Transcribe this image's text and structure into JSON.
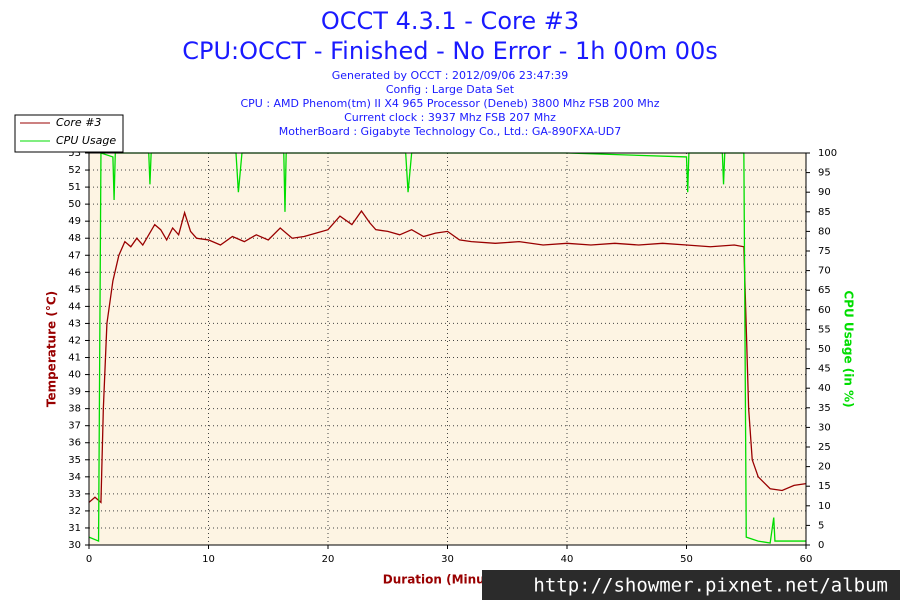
{
  "chart_data": {
    "type": "line",
    "title": "OCCT 4.3.1 - Core #3",
    "subtitle": "CPU:OCCT - Finished - No Error - 1h 00m 00s",
    "info": [
      "Generated by OCCT : 2012/09/06 23:47:39",
      "Config : Large Data Set",
      "CPU : AMD Phenom(tm) II X4 965 Processor (Deneb) 3800 Mhz FSB 200 Mhz",
      "Current clock : 3937 Mhz FSB 207 Mhz",
      "MotherBoard : Gigabyte Technology Co., Ltd.: GA-890FXA-UD7"
    ],
    "xlabel": "Duration (Minutes)",
    "ylabel": "Temperature (°C)",
    "y2label": "CPU Usage (in %)",
    "watermark": "http://showmer.pixnet.net/album",
    "xlim": [
      0,
      60
    ],
    "xticks": [
      0,
      10,
      20,
      30,
      40,
      50,
      60
    ],
    "ylim": [
      30,
      53
    ],
    "yticks": [
      30,
      31,
      32,
      33,
      34,
      35,
      36,
      37,
      38,
      39,
      40,
      41,
      42,
      43,
      44,
      45,
      46,
      47,
      48,
      49,
      50,
      51,
      52,
      53
    ],
    "y2lim": [
      0,
      100
    ],
    "y2ticks": [
      0,
      5,
      10,
      15,
      20,
      25,
      30,
      35,
      40,
      45,
      50,
      55,
      60,
      65,
      70,
      75,
      80,
      85,
      90,
      95,
      100
    ],
    "grid": true,
    "legend": "top-left",
    "series": [
      {
        "name": "Core #3",
        "color": "#990000",
        "x": [
          0,
          0.5,
          1,
          1.2,
          1.5,
          2,
          2.5,
          3,
          3.5,
          4,
          4.5,
          5,
          5.5,
          6,
          6.5,
          7,
          7.5,
          8,
          8.5,
          9,
          10,
          11,
          12,
          13,
          14,
          15,
          16,
          17,
          18,
          19,
          20,
          21,
          22,
          22.8,
          23.5,
          24,
          25,
          26,
          27,
          28,
          29,
          30,
          31,
          32,
          34,
          36,
          38,
          40,
          42,
          44,
          46,
          48,
          50,
          52,
          54,
          54.8,
          55.2,
          55.5,
          56,
          57,
          58,
          59,
          60
        ],
        "values": [
          32.5,
          32.8,
          32.5,
          38,
          43,
          45.5,
          47,
          47.8,
          47.5,
          48,
          47.6,
          48.2,
          48.8,
          48.5,
          47.9,
          48.6,
          48.2,
          49.5,
          48.4,
          48,
          47.9,
          47.6,
          48.1,
          47.8,
          48.2,
          47.9,
          48.6,
          48,
          48.1,
          48.3,
          48.5,
          49.3,
          48.8,
          49.6,
          48.9,
          48.5,
          48.4,
          48.2,
          48.5,
          48.1,
          48.3,
          48.4,
          47.9,
          47.8,
          47.7,
          47.8,
          47.6,
          47.7,
          47.6,
          47.7,
          47.6,
          47.7,
          47.6,
          47.5,
          47.6,
          47.5,
          38,
          35,
          34,
          33.3,
          33.2,
          33.5,
          33.6
        ]
      },
      {
        "name": "CPU Usage",
        "color": "#00dd00",
        "axis": "y2",
        "x": [
          0,
          0.8,
          1,
          2,
          2.1,
          2.2,
          5,
          5.1,
          5.2,
          12.3,
          12.5,
          12.8,
          16.3,
          16.4,
          16.5,
          26.5,
          26.7,
          27,
          40,
          50,
          50.1,
          50.2,
          53,
          53.1,
          53.2,
          54.8,
          55,
          56,
          57,
          57.3,
          57.4,
          60
        ],
        "values": [
          2,
          1,
          100,
          99,
          88,
          100,
          100,
          92,
          100,
          100,
          90,
          100,
          100,
          85,
          100,
          100,
          90,
          100,
          100,
          99,
          90,
          100,
          100,
          92,
          100,
          100,
          2,
          1,
          0.5,
          7,
          1,
          1
        ]
      }
    ]
  }
}
